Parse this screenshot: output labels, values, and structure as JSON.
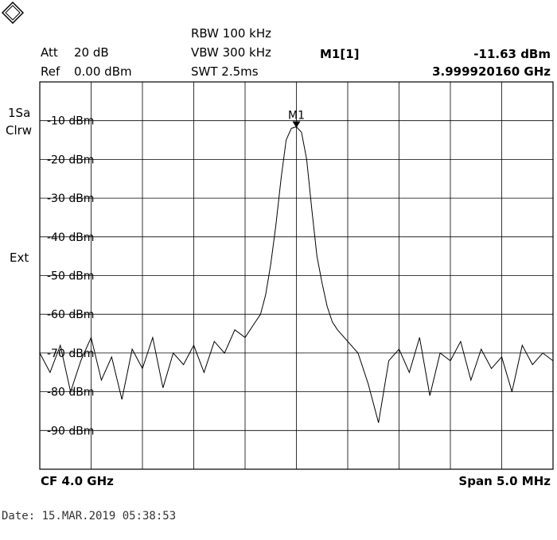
{
  "header": {
    "att_label": "Att",
    "att_value": "20 dB",
    "ref_label": "Ref",
    "ref_value": "0.00 dBm",
    "rbw": "RBW 100 kHz",
    "vbw": "VBW 300 kHz",
    "swt": "SWT 2.5ms",
    "marker_name": "M1[1]",
    "marker_level": "-11.63 dBm",
    "marker_freq": "3.999920160 GHz"
  },
  "side": {
    "trace_mode_1": "1Sa",
    "trace_mode_2": "Clrw",
    "ext": "Ext"
  },
  "footer": {
    "cf": "CF 4.0 GHz",
    "span": "Span 5.0 MHz",
    "date": "Date: 15.MAR.2019  05:38:53"
  },
  "colors": {
    "trace": "#000000",
    "grid": "#000000",
    "background": "#ffffff"
  },
  "chart_data": {
    "type": "line",
    "center_freq_ghz": 4.0,
    "span_mhz": 5.0,
    "x_unit": "MHz offset from CF",
    "xlim": [
      -2.5,
      2.5
    ],
    "ylim": [
      -100,
      0
    ],
    "ytick_values": [
      -10,
      -20,
      -30,
      -40,
      -50,
      -60,
      -70,
      -80,
      -90
    ],
    "ytick_labels": [
      "-10 dBm",
      "-20 dBm",
      "-30 dBm",
      "-40 dBm",
      "-50 dBm",
      "-60 dBm",
      "-70 dBm",
      "-80 dBm",
      "-90 dBm"
    ],
    "x_divisions": 10,
    "y_divisions": 10,
    "grid": true,
    "marker": {
      "label": "M1",
      "x": -8e-05,
      "y": -11.63
    },
    "series": [
      {
        "x": [
          -2.5,
          -2.4,
          -2.3,
          -2.2,
          -2.1,
          -2.0,
          -1.9,
          -1.8,
          -1.7,
          -1.6,
          -1.5,
          -1.4,
          -1.3,
          -1.2,
          -1.1,
          -1.0,
          -0.9,
          -0.8,
          -0.7,
          -0.6,
          -0.5,
          -0.4,
          -0.35,
          -0.3,
          -0.25,
          -0.2,
          -0.15,
          -0.1,
          -0.05,
          0.0,
          0.05,
          0.1,
          0.15,
          0.2,
          0.25,
          0.3,
          0.35,
          0.4,
          0.5,
          0.6,
          0.7,
          0.8,
          0.9,
          1.0,
          1.1,
          1.2,
          1.3,
          1.4,
          1.5,
          1.6,
          1.7,
          1.8,
          1.9,
          2.0,
          2.1,
          2.2,
          2.3,
          2.4,
          2.5
        ],
        "values": [
          -70,
          -75,
          -68,
          -80,
          -72,
          -66,
          -77,
          -71,
          -82,
          -69,
          -74,
          -66,
          -79,
          -70,
          -73,
          -68,
          -75,
          -67,
          -70,
          -64,
          -66,
          -62,
          -60,
          -55,
          -47,
          -37,
          -25,
          -15,
          -12,
          -11.6,
          -13,
          -20,
          -33,
          -45,
          -52,
          -58,
          -62,
          -64,
          -67,
          -70,
          -78,
          -88,
          -72,
          -69,
          -75,
          -66,
          -81,
          -70,
          -72,
          -67,
          -77,
          -69,
          -74,
          -71,
          -80,
          -68,
          -73,
          -70,
          -72
        ]
      }
    ]
  }
}
